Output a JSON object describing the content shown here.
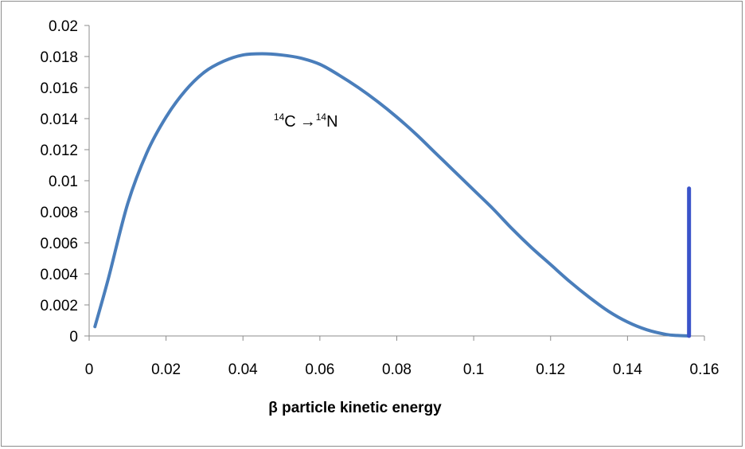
{
  "chart_data": {
    "type": "line",
    "title": "",
    "xlabel": "β particle kinetic energy",
    "ylabel": "",
    "xlim": [
      0,
      0.16
    ],
    "ylim": [
      0,
      0.02
    ],
    "x_ticks": [
      0,
      0.02,
      0.04,
      0.06,
      0.08,
      0.1,
      0.12,
      0.14,
      0.16
    ],
    "x_tick_labels": [
      "0",
      "0.02",
      "0.04",
      "0.06",
      "0.08",
      "0.1",
      "0.12",
      "0.14",
      "0.16"
    ],
    "y_ticks": [
      0,
      0.002,
      0.004,
      0.006,
      0.008,
      0.01,
      0.012,
      0.014,
      0.016,
      0.018,
      0.02
    ],
    "y_tick_labels": [
      "0",
      "0.002",
      "0.004",
      "0.006",
      "0.008",
      "0.01",
      "0.012",
      "0.014",
      "0.016",
      "0.018",
      "0.02"
    ],
    "grid": false,
    "legend": "none",
    "annotation": {
      "sup1": "14",
      "base1": "C",
      "arrow": "→",
      "sup2": "14",
      "base2": "N",
      "x": 0.048,
      "y": 0.0135
    },
    "series": [
      {
        "color": "#4a7ebb",
        "x": [
          0.0015,
          0.005,
          0.01,
          0.015,
          0.02,
          0.025,
          0.03,
          0.035,
          0.04,
          0.045,
          0.05,
          0.055,
          0.06,
          0.065,
          0.07,
          0.075,
          0.08,
          0.085,
          0.09,
          0.095,
          0.1,
          0.105,
          0.11,
          0.115,
          0.12,
          0.125,
          0.13,
          0.135,
          0.14,
          0.145,
          0.15,
          0.153,
          0.156
        ],
        "y": [
          0.0006,
          0.0037,
          0.0085,
          0.0118,
          0.0141,
          0.0158,
          0.017,
          0.0177,
          0.0181,
          0.01818,
          0.0181,
          0.0179,
          0.0175,
          0.0168,
          0.016,
          0.0151,
          0.0141,
          0.013,
          0.0118,
          0.0106,
          0.0094,
          0.0082,
          0.0069,
          0.0057,
          0.0046,
          0.0035,
          0.0025,
          0.0016,
          0.0009,
          0.0004,
          0.0001,
          3e-05,
          0.0
        ]
      }
    ],
    "endpoint_marker": {
      "color": "#3a53c9",
      "x": 0.156,
      "y_from": 0,
      "y_to": 0.0095
    }
  }
}
